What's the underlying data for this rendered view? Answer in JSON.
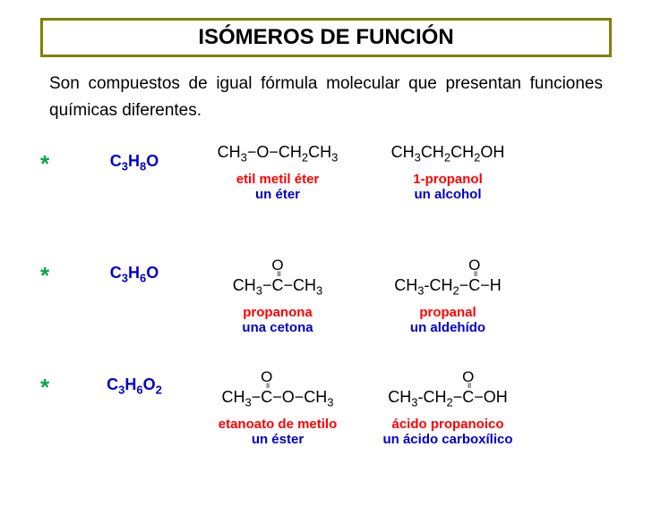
{
  "colors": {
    "title_border": "#808000",
    "title_text": "#000000",
    "description": "#000000",
    "asterisk": "#00a650",
    "formula": "#0000cc",
    "structure": "#000000",
    "compound_name": "#ff0000",
    "compound_type": "#0000cc"
  },
  "title": "ISÓMEROS DE FUNCIÓN",
  "description": "Son compuestos de igual fórmula molecular que presentan funciones químicas diferentes.",
  "rows": [
    {
      "asterisk": "*",
      "formula_prefix": "C",
      "formula_c": "3",
      "formula_h_prefix": "H",
      "formula_h": "8",
      "formula_suffix": "O",
      "c1_name": "etil metil éter",
      "c1_type": "un éter",
      "c2_name": "1-propanol",
      "c2_type": "un alcohol"
    },
    {
      "asterisk": "*",
      "formula_prefix": "C",
      "formula_c": "3",
      "formula_h_prefix": "H",
      "formula_h": "6",
      "formula_suffix": "O",
      "c1_name": "propanona",
      "c1_type": "una cetona",
      "c2_name": "propanal",
      "c2_type": "un aldehído"
    },
    {
      "asterisk": "*",
      "formula_prefix": "C",
      "formula_c": "3",
      "formula_h_prefix": "H",
      "formula_h": "6",
      "formula_suffix": "O",
      "formula_o2": "2",
      "c1_name": "etanoato de metilo",
      "c1_type": "un éster",
      "c2_name": "ácido propanoico",
      "c2_type": "un ácido carboxílico"
    }
  ],
  "oxygen": "O"
}
